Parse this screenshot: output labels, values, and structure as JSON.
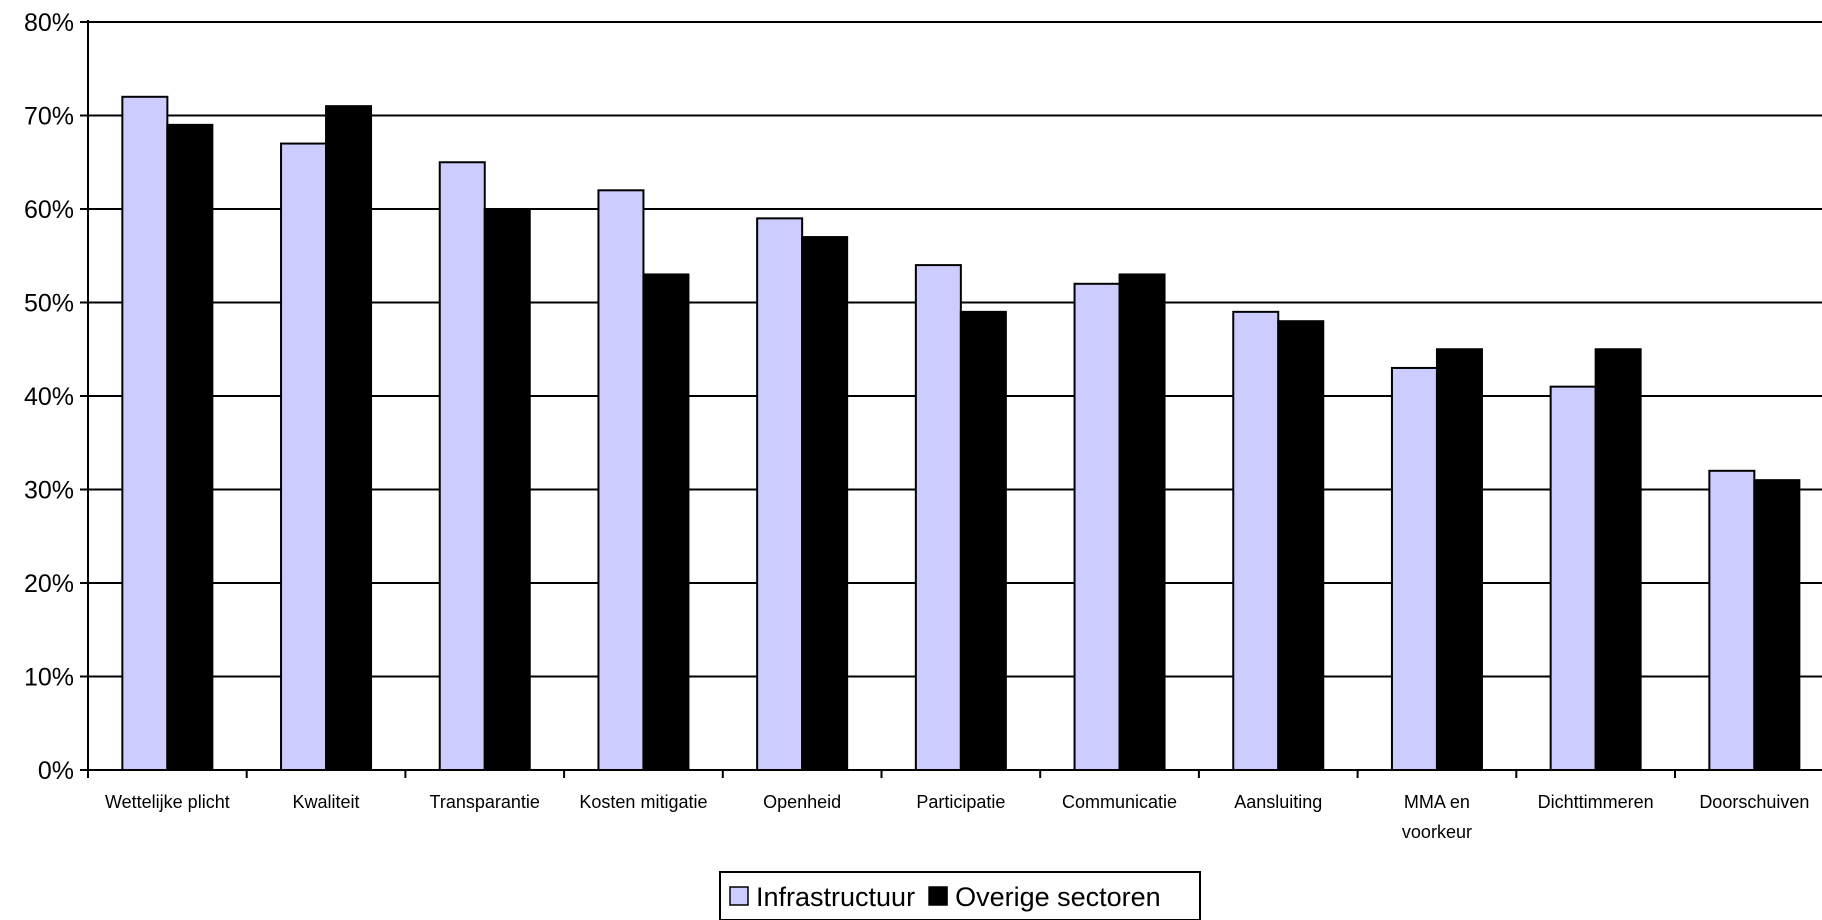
{
  "chart_data": {
    "type": "bar",
    "title": "",
    "xlabel": "",
    "ylabel": "",
    "categories": [
      [
        "Wettelijke plicht"
      ],
      [
        "Kwaliteit"
      ],
      [
        "Transparantie"
      ],
      [
        "Kosten mitigatie"
      ],
      [
        "Openheid"
      ],
      [
        "Participatie"
      ],
      [
        "Communicatie"
      ],
      [
        "Aansluiting"
      ],
      [
        "MMA en",
        "voorkeur"
      ],
      [
        "Dichttimmeren"
      ],
      [
        "Doorschuiven"
      ]
    ],
    "series": [
      {
        "name": "Infrastructuur",
        "color": "#ccccff",
        "values": [
          72,
          67,
          65,
          62,
          59,
          54,
          52,
          49,
          43,
          41,
          32
        ]
      },
      {
        "name": "Overige sectoren",
        "color": "#000000",
        "values": [
          69,
          71,
          60,
          53,
          57,
          49,
          53,
          48,
          45,
          45,
          31
        ]
      }
    ],
    "ylim": [
      0,
      80
    ],
    "yticks": [
      0,
      10,
      20,
      30,
      40,
      50,
      60,
      70,
      80
    ],
    "ytick_format": "{v}%",
    "grid": true,
    "legend_position": "bottom-center"
  }
}
